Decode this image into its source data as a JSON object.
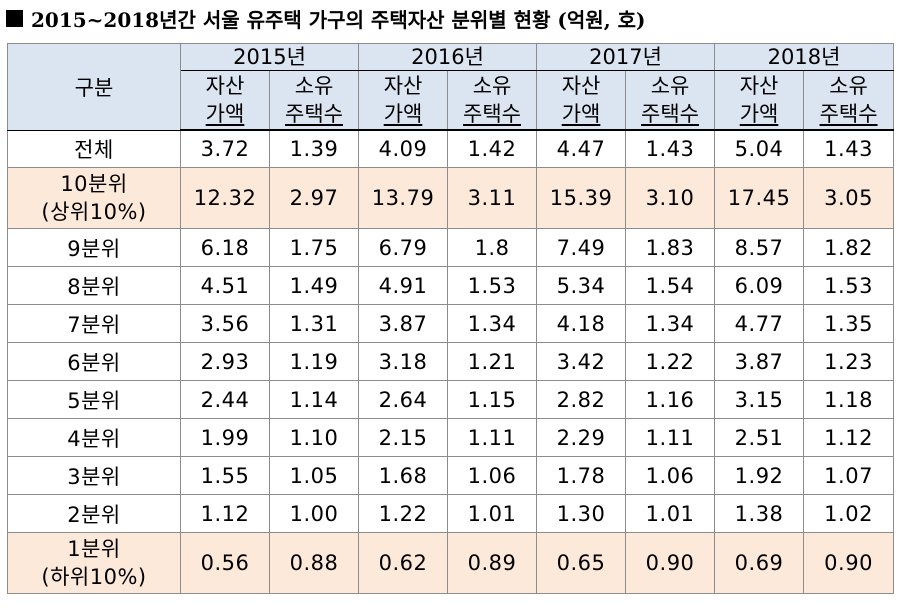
{
  "title": {
    "icon": "black-square-icon",
    "text": "2015~2018년간 서울 유주택 가구의 주택자산 분위별 현황 (억원, 호)"
  },
  "header": {
    "category": "구분",
    "years": [
      "2015년",
      "2016년",
      "2017년",
      "2018년"
    ],
    "sub": {
      "asset": [
        "자산",
        "가액"
      ],
      "houses": [
        "소유",
        "주택수"
      ]
    }
  },
  "rows": [
    {
      "label": [
        "전체"
      ],
      "highlight": false,
      "values": [
        "3.72",
        "1.39",
        "4.09",
        "1.42",
        "4.47",
        "1.43",
        "5.04",
        "1.43"
      ]
    },
    {
      "label": [
        "10분위",
        "(상위10%)"
      ],
      "highlight": true,
      "values": [
        "12.32",
        "2.97",
        "13.79",
        "3.11",
        "15.39",
        "3.10",
        "17.45",
        "3.05"
      ]
    },
    {
      "label": [
        "9분위"
      ],
      "highlight": false,
      "values": [
        "6.18",
        "1.75",
        "6.79",
        "1.8",
        "7.49",
        "1.83",
        "8.57",
        "1.82"
      ]
    },
    {
      "label": [
        "8분위"
      ],
      "highlight": false,
      "values": [
        "4.51",
        "1.49",
        "4.91",
        "1.53",
        "5.34",
        "1.54",
        "6.09",
        "1.53"
      ]
    },
    {
      "label": [
        "7분위"
      ],
      "highlight": false,
      "values": [
        "3.56",
        "1.31",
        "3.87",
        "1.34",
        "4.18",
        "1.34",
        "4.77",
        "1.35"
      ]
    },
    {
      "label": [
        "6분위"
      ],
      "highlight": false,
      "values": [
        "2.93",
        "1.19",
        "3.18",
        "1.21",
        "3.42",
        "1.22",
        "3.87",
        "1.23"
      ]
    },
    {
      "label": [
        "5분위"
      ],
      "highlight": false,
      "values": [
        "2.44",
        "1.14",
        "2.64",
        "1.15",
        "2.82",
        "1.16",
        "3.15",
        "1.18"
      ]
    },
    {
      "label": [
        "4분위"
      ],
      "highlight": false,
      "values": [
        "1.99",
        "1.10",
        "2.15",
        "1.11",
        "2.29",
        "1.11",
        "2.51",
        "1.12"
      ]
    },
    {
      "label": [
        "3분위"
      ],
      "highlight": false,
      "values": [
        "1.55",
        "1.05",
        "1.68",
        "1.06",
        "1.78",
        "1.06",
        "1.92",
        "1.07"
      ]
    },
    {
      "label": [
        "2분위"
      ],
      "highlight": false,
      "values": [
        "1.12",
        "1.00",
        "1.22",
        "1.01",
        "1.30",
        "1.01",
        "1.38",
        "1.02"
      ]
    },
    {
      "label": [
        "1분위",
        "(하위10%)"
      ],
      "highlight": true,
      "values": [
        "0.56",
        "0.88",
        "0.62",
        "0.89",
        "0.65",
        "0.90",
        "0.69",
        "0.90"
      ]
    }
  ],
  "colors": {
    "header_bg": "#dbe5f1",
    "highlight_bg": "#fde9d9",
    "border": "#8c8c8c",
    "text": "#000000"
  }
}
